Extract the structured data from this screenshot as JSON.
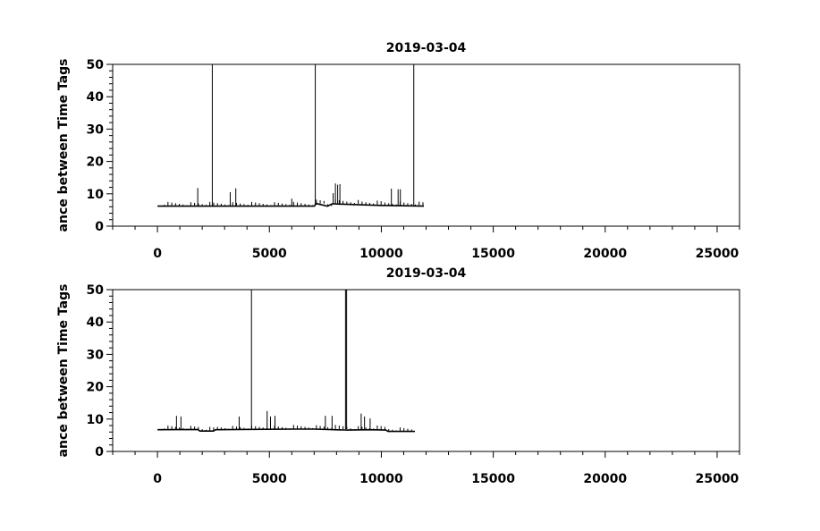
{
  "chart_data": [
    {
      "type": "line",
      "title": "2019-03-04",
      "xlabel": "",
      "ylabel": "ance between Time Tags",
      "xlim": [
        -2000,
        26000
      ],
      "ylim": [
        0,
        50
      ],
      "xticks": [
        0,
        5000,
        10000,
        15000,
        20000,
        25000
      ],
      "xtick_labels": [
        "0",
        "5000",
        "10000",
        "15000",
        "20000",
        "25000"
      ],
      "yticks": [
        0,
        10,
        20,
        30,
        40,
        50
      ],
      "ytick_labels": [
        "0",
        "10",
        "20",
        "30",
        "40",
        "50"
      ],
      "grid": false,
      "color": "#000000",
      "baseline": [
        [
          0,
          6.2
        ],
        [
          7000,
          6.2
        ],
        [
          7100,
          7.0
        ],
        [
          7600,
          6.2
        ],
        [
          7800,
          6.9
        ],
        [
          9000,
          6.6
        ],
        [
          10000,
          6.4
        ],
        [
          11000,
          6.3
        ],
        [
          11900,
          6.2
        ]
      ],
      "spikes": [
        {
          "x": 1800,
          "y": 11.8
        },
        {
          "x": 2450,
          "y": 50
        },
        {
          "x": 3250,
          "y": 10.5
        },
        {
          "x": 3500,
          "y": 11.7
        },
        {
          "x": 6000,
          "y": 8.5
        },
        {
          "x": 7050,
          "y": 50
        },
        {
          "x": 7850,
          "y": 10.2
        },
        {
          "x": 7950,
          "y": 13.2
        },
        {
          "x": 8050,
          "y": 12.8
        },
        {
          "x": 8150,
          "y": 13.0
        },
        {
          "x": 10450,
          "y": 11.6
        },
        {
          "x": 10750,
          "y": 11.4
        },
        {
          "x": 10850,
          "y": 11.4
        },
        {
          "x": 11450,
          "y": 50
        }
      ]
    },
    {
      "type": "line",
      "title": "2019-03-04",
      "xlabel": "",
      "ylabel": "ance between Time Tags",
      "xlim": [
        -2000,
        26000
      ],
      "ylim": [
        0,
        50
      ],
      "xticks": [
        0,
        5000,
        10000,
        15000,
        20000,
        25000
      ],
      "xtick_labels": [
        "0",
        "5000",
        "10000",
        "15000",
        "20000",
        "25000"
      ],
      "yticks": [
        0,
        10,
        20,
        30,
        40,
        50
      ],
      "ytick_labels": [
        "0",
        "10",
        "20",
        "30",
        "40",
        "50"
      ],
      "grid": false,
      "color": "#000000",
      "baseline": [
        [
          0,
          6.7
        ],
        [
          1800,
          6.8
        ],
        [
          1900,
          6.3
        ],
        [
          2500,
          6.3
        ],
        [
          2600,
          6.7
        ],
        [
          6000,
          6.9
        ],
        [
          7000,
          6.9
        ],
        [
          8500,
          6.6
        ],
        [
          9500,
          6.7
        ],
        [
          10200,
          6.6
        ],
        [
          10300,
          6.2
        ],
        [
          11500,
          6.2
        ]
      ],
      "spikes": [
        {
          "x": 850,
          "y": 11.0
        },
        {
          "x": 1050,
          "y": 10.8
        },
        {
          "x": 3650,
          "y": 10.8
        },
        {
          "x": 4200,
          "y": 50
        },
        {
          "x": 4900,
          "y": 12.5
        },
        {
          "x": 5050,
          "y": 10.8
        },
        {
          "x": 5250,
          "y": 11.0
        },
        {
          "x": 7500,
          "y": 11.0
        },
        {
          "x": 7800,
          "y": 11.0
        },
        {
          "x": 8400,
          "y": 50
        },
        {
          "x": 8450,
          "y": 50
        },
        {
          "x": 9100,
          "y": 11.7
        },
        {
          "x": 9250,
          "y": 10.8
        },
        {
          "x": 9500,
          "y": 10.2
        }
      ]
    }
  ]
}
